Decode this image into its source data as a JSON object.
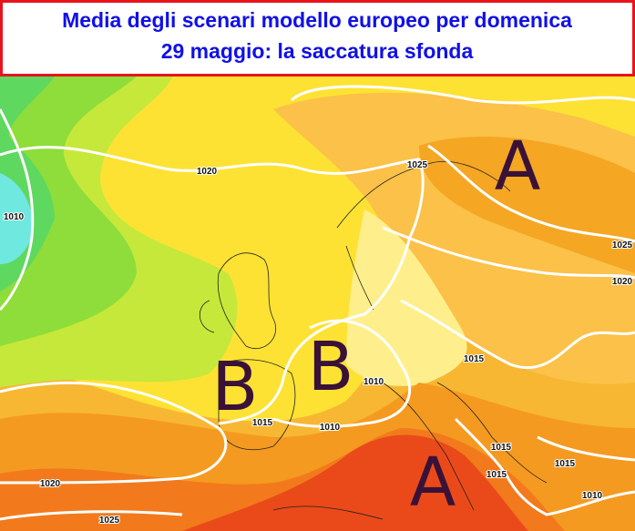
{
  "title": [
    "Media degli scenari modello europeo per domenica",
    "29 maggio: la saccatura sfonda"
  ],
  "pressure_centers": [
    "A",
    "B",
    "B",
    "A"
  ],
  "isobar_labels": [
    1020,
    1010,
    1025,
    1025,
    1020,
    1015,
    1010,
    1015,
    1010,
    1015,
    1015,
    1015,
    1020,
    1010,
    1025
  ]
}
